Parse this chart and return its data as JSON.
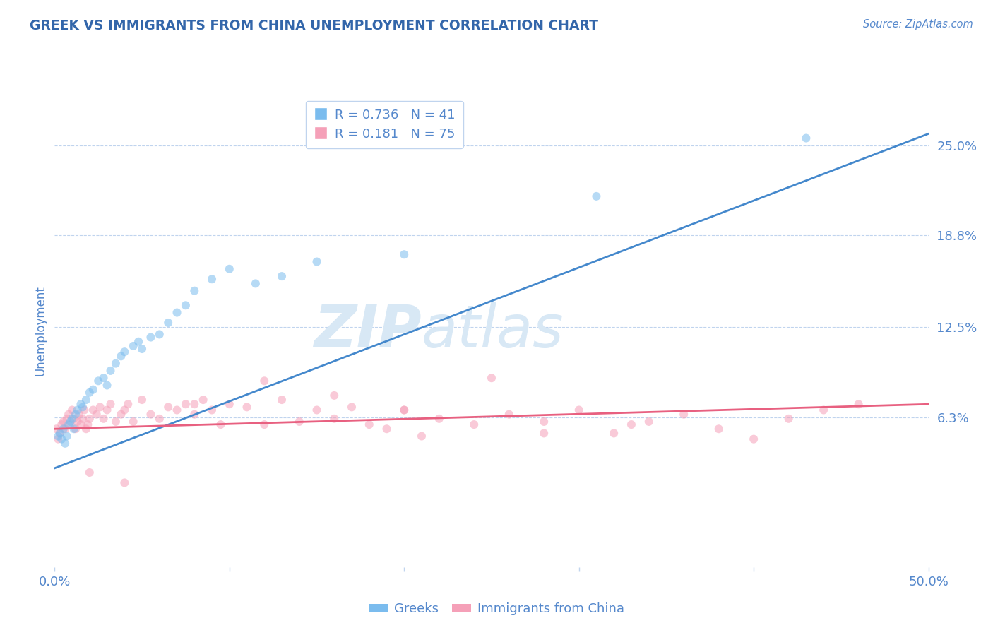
{
  "title": "GREEK VS IMMIGRANTS FROM CHINA UNEMPLOYMENT CORRELATION CHART",
  "source_text": "Source: ZipAtlas.com",
  "ylabel": "Unemployment",
  "xlim": [
    0.0,
    0.5
  ],
  "ylim": [
    -0.04,
    0.285
  ],
  "blue_R": 0.736,
  "blue_N": 41,
  "pink_R": 0.181,
  "pink_N": 75,
  "blue_color": "#7bbcee",
  "pink_color": "#f5a0b8",
  "blue_line_color": "#4488cc",
  "pink_line_color": "#e86080",
  "title_color": "#3366aa",
  "axis_label_color": "#5588cc",
  "tick_color": "#5588cc",
  "grid_color": "#c0d4ee",
  "watermark_color": "#d8e8f5",
  "legend_text_color": "#5588cc",
  "blue_scatter_x": [
    0.002,
    0.003,
    0.004,
    0.005,
    0.006,
    0.007,
    0.008,
    0.009,
    0.01,
    0.011,
    0.012,
    0.013,
    0.015,
    0.016,
    0.018,
    0.02,
    0.022,
    0.025,
    0.028,
    0.03,
    0.032,
    0.035,
    0.038,
    0.04,
    0.045,
    0.048,
    0.05,
    0.055,
    0.06,
    0.065,
    0.07,
    0.075,
    0.08,
    0.09,
    0.1,
    0.115,
    0.13,
    0.15,
    0.2,
    0.31,
    0.43
  ],
  "blue_scatter_y": [
    0.05,
    0.052,
    0.048,
    0.055,
    0.045,
    0.05,
    0.058,
    0.06,
    0.062,
    0.055,
    0.065,
    0.068,
    0.072,
    0.07,
    0.075,
    0.08,
    0.082,
    0.088,
    0.09,
    0.085,
    0.095,
    0.1,
    0.105,
    0.108,
    0.112,
    0.115,
    0.11,
    0.118,
    0.12,
    0.128,
    0.135,
    0.14,
    0.15,
    0.158,
    0.165,
    0.155,
    0.16,
    0.17,
    0.175,
    0.215,
    0.255
  ],
  "pink_scatter_x": [
    0.001,
    0.002,
    0.003,
    0.004,
    0.005,
    0.006,
    0.007,
    0.008,
    0.009,
    0.01,
    0.011,
    0.012,
    0.013,
    0.014,
    0.015,
    0.016,
    0.017,
    0.018,
    0.019,
    0.02,
    0.022,
    0.024,
    0.026,
    0.028,
    0.03,
    0.032,
    0.035,
    0.038,
    0.04,
    0.042,
    0.045,
    0.05,
    0.055,
    0.06,
    0.065,
    0.07,
    0.075,
    0.08,
    0.085,
    0.09,
    0.095,
    0.1,
    0.11,
    0.12,
    0.13,
    0.14,
    0.15,
    0.16,
    0.17,
    0.18,
    0.19,
    0.2,
    0.21,
    0.22,
    0.24,
    0.26,
    0.28,
    0.3,
    0.32,
    0.34,
    0.36,
    0.38,
    0.4,
    0.42,
    0.44,
    0.46,
    0.33,
    0.28,
    0.25,
    0.2,
    0.16,
    0.12,
    0.08,
    0.04,
    0.02
  ],
  "pink_scatter_y": [
    0.055,
    0.048,
    0.052,
    0.058,
    0.06,
    0.055,
    0.062,
    0.065,
    0.058,
    0.068,
    0.062,
    0.055,
    0.06,
    0.065,
    0.058,
    0.062,
    0.068,
    0.055,
    0.058,
    0.062,
    0.068,
    0.065,
    0.07,
    0.062,
    0.068,
    0.072,
    0.06,
    0.065,
    0.068,
    0.072,
    0.06,
    0.075,
    0.065,
    0.062,
    0.07,
    0.068,
    0.072,
    0.065,
    0.075,
    0.068,
    0.058,
    0.072,
    0.07,
    0.058,
    0.075,
    0.06,
    0.068,
    0.062,
    0.07,
    0.058,
    0.055,
    0.068,
    0.05,
    0.062,
    0.058,
    0.065,
    0.06,
    0.068,
    0.052,
    0.06,
    0.065,
    0.055,
    0.048,
    0.062,
    0.068,
    0.072,
    0.058,
    0.052,
    0.09,
    0.068,
    0.078,
    0.088,
    0.072,
    0.018,
    0.025
  ],
  "blue_line_x": [
    0.0,
    0.5
  ],
  "blue_line_y": [
    0.028,
    0.258
  ],
  "pink_line_x": [
    0.0,
    0.5
  ],
  "pink_line_y": [
    0.055,
    0.072
  ],
  "ytick_vals": [
    0.063,
    0.125,
    0.188,
    0.25
  ],
  "ytick_labels": [
    "6.3%",
    "12.5%",
    "18.8%",
    "25.0%"
  ],
  "xtick_vals": [
    0.0,
    0.1,
    0.2,
    0.3,
    0.4,
    0.5
  ],
  "xtick_labels": [
    "0.0%",
    "",
    "",
    "",
    "",
    "50.0%"
  ],
  "marker_size": 75,
  "alpha": 0.55,
  "legend_label_blue": "Greeks",
  "legend_label_pink": "Immigrants from China",
  "background_color": "#ffffff"
}
